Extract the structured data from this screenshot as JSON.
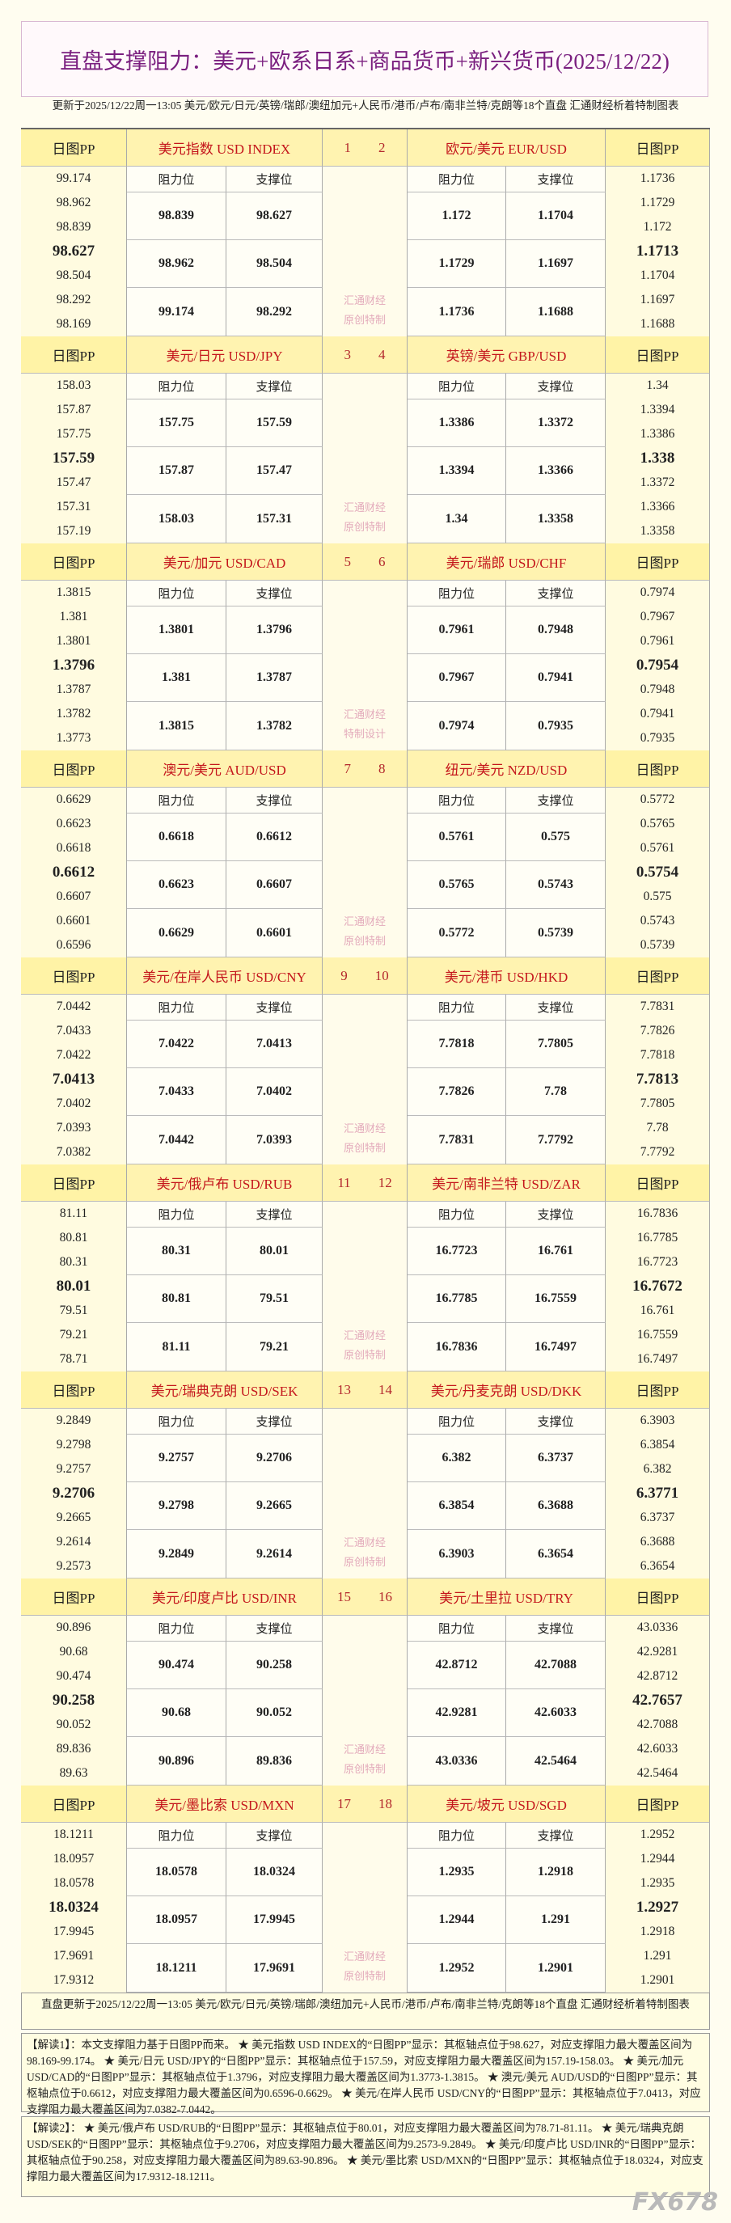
{
  "header": {
    "title": "直盘支撑阻力：美元+欧系日系+商品货币+新兴货币(2025/12/22)",
    "update": "更新于2025/12/22周一13:05 美元/欧元/日元/英镑/瑞郎/澳纽加元+人民币/港币/卢布/南非兰特/克朗等18个直盘 汇通财经析着特制图表"
  },
  "labels": {
    "pp": "日图PP",
    "resistance": "阻力位",
    "support": "支撑位"
  },
  "blocks": [
    {
      "numbers": [
        "1",
        "2"
      ],
      "watermark": [
        "汇通财经",
        "原创特制"
      ],
      "left": {
        "pair": "美元指数 USD INDEX",
        "pp": [
          "99.174",
          "98.962",
          "98.839",
          "98.627",
          "98.504",
          "98.292",
          "98.169"
        ],
        "rows": [
          [
            "98.839",
            "98.627"
          ],
          [
            "98.962",
            "98.504"
          ],
          [
            "99.174",
            "98.292"
          ]
        ]
      },
      "right": {
        "pair": "欧元/美元 EUR/USD",
        "pp": [
          "1.1736",
          "1.1729",
          "1.172",
          "1.1713",
          "1.1704",
          "1.1697",
          "1.1688"
        ],
        "rows": [
          [
            "1.172",
            "1.1704"
          ],
          [
            "1.1729",
            "1.1697"
          ],
          [
            "1.1736",
            "1.1688"
          ]
        ]
      }
    },
    {
      "numbers": [
        "3",
        "4"
      ],
      "watermark": [
        "汇通财经",
        "原创特制"
      ],
      "left": {
        "pair": "美元/日元 USD/JPY",
        "pp": [
          "158.03",
          "157.87",
          "157.75",
          "157.59",
          "157.47",
          "157.31",
          "157.19"
        ],
        "rows": [
          [
            "157.75",
            "157.59"
          ],
          [
            "157.87",
            "157.47"
          ],
          [
            "158.03",
            "157.31"
          ]
        ]
      },
      "right": {
        "pair": "英镑/美元 GBP/USD",
        "pp": [
          "1.34",
          "1.3394",
          "1.3386",
          "1.338",
          "1.3372",
          "1.3366",
          "1.3358"
        ],
        "rows": [
          [
            "1.3386",
            "1.3372"
          ],
          [
            "1.3394",
            "1.3366"
          ],
          [
            "1.34",
            "1.3358"
          ]
        ]
      }
    },
    {
      "numbers": [
        "5",
        "6"
      ],
      "watermark": [
        "汇通财经",
        "特制设计"
      ],
      "left": {
        "pair": "美元/加元 USD/CAD",
        "pp": [
          "1.3815",
          "1.381",
          "1.3801",
          "1.3796",
          "1.3787",
          "1.3782",
          "1.3773"
        ],
        "rows": [
          [
            "1.3801",
            "1.3796"
          ],
          [
            "1.381",
            "1.3787"
          ],
          [
            "1.3815",
            "1.3782"
          ]
        ]
      },
      "right": {
        "pair": "美元/瑞郎 USD/CHF",
        "pp": [
          "0.7974",
          "0.7967",
          "0.7961",
          "0.7954",
          "0.7948",
          "0.7941",
          "0.7935"
        ],
        "rows": [
          [
            "0.7961",
            "0.7948"
          ],
          [
            "0.7967",
            "0.7941"
          ],
          [
            "0.7974",
            "0.7935"
          ]
        ]
      }
    },
    {
      "numbers": [
        "7",
        "8"
      ],
      "watermark": [
        "汇通财经",
        "原创特制"
      ],
      "left": {
        "pair": "澳元/美元 AUD/USD",
        "pp": [
          "0.6629",
          "0.6623",
          "0.6618",
          "0.6612",
          "0.6607",
          "0.6601",
          "0.6596"
        ],
        "rows": [
          [
            "0.6618",
            "0.6612"
          ],
          [
            "0.6623",
            "0.6607"
          ],
          [
            "0.6629",
            "0.6601"
          ]
        ]
      },
      "right": {
        "pair": "纽元/美元 NZD/USD",
        "pp": [
          "0.5772",
          "0.5765",
          "0.5761",
          "0.5754",
          "0.575",
          "0.5743",
          "0.5739"
        ],
        "rows": [
          [
            "0.5761",
            "0.575"
          ],
          [
            "0.5765",
            "0.5743"
          ],
          [
            "0.5772",
            "0.5739"
          ]
        ]
      }
    },
    {
      "numbers": [
        "9",
        "10"
      ],
      "watermark": [
        "汇通财经",
        "原创特制"
      ],
      "left": {
        "pair": "美元/在岸人民币 USD/CNY",
        "pp": [
          "7.0442",
          "7.0433",
          "7.0422",
          "7.0413",
          "7.0402",
          "7.0393",
          "7.0382"
        ],
        "rows": [
          [
            "7.0422",
            "7.0413"
          ],
          [
            "7.0433",
            "7.0402"
          ],
          [
            "7.0442",
            "7.0393"
          ]
        ]
      },
      "right": {
        "pair": "美元/港币 USD/HKD",
        "pp": [
          "7.7831",
          "7.7826",
          "7.7818",
          "7.7813",
          "7.7805",
          "7.78",
          "7.7792"
        ],
        "rows": [
          [
            "7.7818",
            "7.7805"
          ],
          [
            "7.7826",
            "7.78"
          ],
          [
            "7.7831",
            "7.7792"
          ]
        ]
      }
    },
    {
      "numbers": [
        "11",
        "12"
      ],
      "watermark": [
        "汇通财经",
        "原创特制"
      ],
      "left": {
        "pair": "美元/俄卢布 USD/RUB",
        "pp": [
          "81.11",
          "80.81",
          "80.31",
          "80.01",
          "79.51",
          "79.21",
          "78.71"
        ],
        "rows": [
          [
            "80.31",
            "80.01"
          ],
          [
            "80.81",
            "79.51"
          ],
          [
            "81.11",
            "79.21"
          ]
        ]
      },
      "right": {
        "pair": "美元/南非兰特 USD/ZAR",
        "pp": [
          "16.7836",
          "16.7785",
          "16.7723",
          "16.7672",
          "16.761",
          "16.7559",
          "16.7497"
        ],
        "rows": [
          [
            "16.7723",
            "16.761"
          ],
          [
            "16.7785",
            "16.7559"
          ],
          [
            "16.7836",
            "16.7497"
          ]
        ]
      }
    },
    {
      "numbers": [
        "13",
        "14"
      ],
      "watermark": [
        "汇通财经",
        "原创特制"
      ],
      "left": {
        "pair": "美元/瑞典克朗 USD/SEK",
        "pp": [
          "9.2849",
          "9.2798",
          "9.2757",
          "9.2706",
          "9.2665",
          "9.2614",
          "9.2573"
        ],
        "rows": [
          [
            "9.2757",
            "9.2706"
          ],
          [
            "9.2798",
            "9.2665"
          ],
          [
            "9.2849",
            "9.2614"
          ]
        ]
      },
      "right": {
        "pair": "美元/丹麦克朗 USD/DKK",
        "pp": [
          "6.3903",
          "6.3854",
          "6.382",
          "6.3771",
          "6.3737",
          "6.3688",
          "6.3654"
        ],
        "rows": [
          [
            "6.382",
            "6.3737"
          ],
          [
            "6.3854",
            "6.3688"
          ],
          [
            "6.3903",
            "6.3654"
          ]
        ]
      }
    },
    {
      "numbers": [
        "15",
        "16"
      ],
      "watermark": [
        "汇通财经",
        "原创特制"
      ],
      "left": {
        "pair": "美元/印度卢比 USD/INR",
        "pp": [
          "90.896",
          "90.68",
          "90.474",
          "90.258",
          "90.052",
          "89.836",
          "89.63"
        ],
        "rows": [
          [
            "90.474",
            "90.258"
          ],
          [
            "90.68",
            "90.052"
          ],
          [
            "90.896",
            "89.836"
          ]
        ]
      },
      "right": {
        "pair": "美元/土里拉 USD/TRY",
        "pp": [
          "43.0336",
          "42.9281",
          "42.8712",
          "42.7657",
          "42.7088",
          "42.6033",
          "42.5464"
        ],
        "rows": [
          [
            "42.8712",
            "42.7088"
          ],
          [
            "42.9281",
            "42.6033"
          ],
          [
            "43.0336",
            "42.5464"
          ]
        ]
      }
    },
    {
      "numbers": [
        "17",
        "18"
      ],
      "watermark": [
        "汇通财经",
        "原创特制"
      ],
      "left": {
        "pair": "美元/墨比索 USD/MXN",
        "pp": [
          "18.1211",
          "18.0957",
          "18.0578",
          "18.0324",
          "17.9945",
          "17.9691",
          "17.9312"
        ],
        "rows": [
          [
            "18.0578",
            "18.0324"
          ],
          [
            "18.0957",
            "17.9945"
          ],
          [
            "18.1211",
            "17.9691"
          ]
        ]
      },
      "right": {
        "pair": "美元/坡元 USD/SGD",
        "pp": [
          "1.2952",
          "1.2944",
          "1.2935",
          "1.2927",
          "1.2918",
          "1.291",
          "1.2901"
        ],
        "rows": [
          [
            "1.2935",
            "1.2918"
          ],
          [
            "1.2944",
            "1.291"
          ],
          [
            "1.2952",
            "1.2901"
          ]
        ]
      }
    }
  ],
  "footer": {
    "update": "直盘更新于2025/12/22周一13:05 美元/欧元/日元/英镑/瑞郎/澳纽加元+人民币/港币/卢布/南非兰特/克朗等18个直盘 汇通财经析着特制图表",
    "notes": [
      "【解读1】：本文支撑阻力基于日图PP而来。 ★ 美元指数 USD INDEX的“日图PP”显示：其枢轴点位于98.627，对应支撑阻力最大覆盖区间为98.169-99.174。 ★ 美元/日元 USD/JPY的“日图PP”显示：其枢轴点位于157.59，对应支撑阻力最大覆盖区间为157.19-158.03。 ★ 美元/加元 USD/CAD的“日图PP”显示：其枢轴点位于1.3796，对应支撑阻力最大覆盖区间为1.3773-1.3815。 ★ 澳元/美元 AUD/USD的“日图PP”显示：其枢轴点位于0.6612，对应支撑阻力最大覆盖区间为0.6596-0.6629。 ★ 美元/在岸人民币 USD/CNY的“日图PP”显示：其枢轴点位于7.0413，对应支撑阻力最大覆盖区间为7.0382-7.0442。",
      "【解读2】： ★ 美元/俄卢布 USD/RUB的“日图PP”显示：其枢轴点位于80.01，对应支撑阻力最大覆盖区间为78.71-81.11。 ★ 美元/瑞典克朗 USD/SEK的“日图PP”显示：其枢轴点位于9.2706，对应支撑阻力最大覆盖区间为9.2573-9.2849。 ★ 美元/印度卢比 USD/INR的“日图PP”显示：其枢轴点位于90.258，对应支撑阻力最大覆盖区间为89.63-90.896。 ★ 美元/墨比索 USD/MXN的“日图PP”显示：其枢轴点位于18.0324，对应支撑阻力最大覆盖区间为17.9312-18.1211。"
    ]
  },
  "logo": "FX678"
}
